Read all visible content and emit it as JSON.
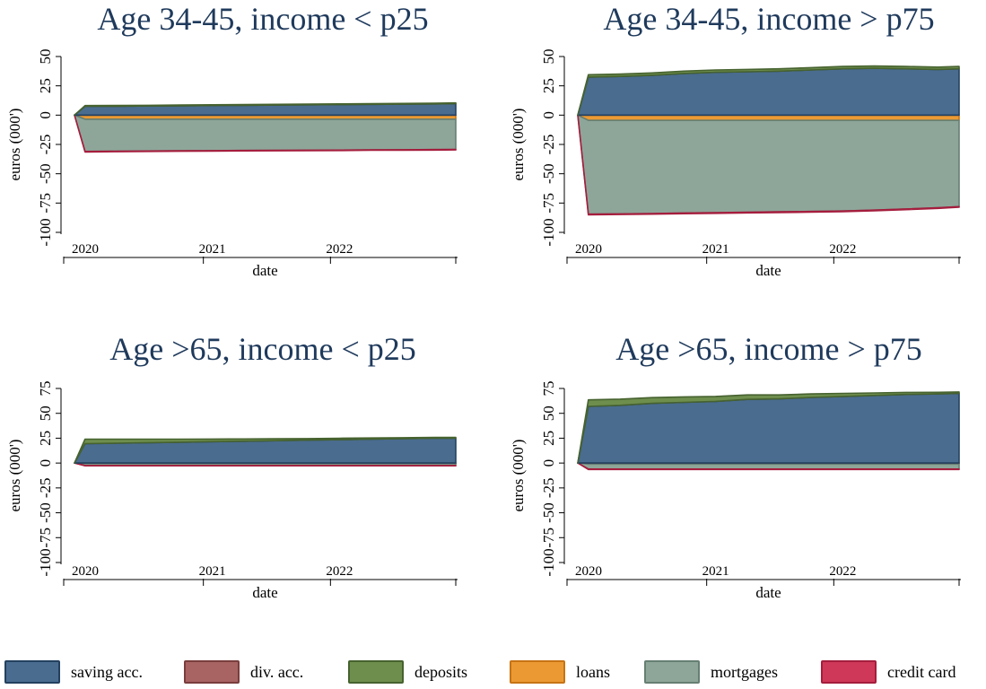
{
  "figure": {
    "legend": [
      {
        "key": "saving",
        "label": "saving acc.",
        "fill": "#4a6c8f",
        "stroke": "#23415f"
      },
      {
        "key": "div",
        "label": "div. acc.",
        "fill": "#a86363",
        "stroke": "#7a3d3d"
      },
      {
        "key": "deposits",
        "label": "deposits",
        "fill": "#6e8e4e",
        "stroke": "#46622f"
      },
      {
        "key": "loans",
        "label": "loans",
        "fill": "#eb9a33",
        "stroke": "#c77314"
      },
      {
        "key": "mortgages",
        "label": "mortgages",
        "fill": "#8ea69a",
        "stroke": "#667f73"
      },
      {
        "key": "credit",
        "label": "credit card",
        "fill": "#cf3858",
        "stroke": "#a51d3d"
      }
    ]
  },
  "chart_data": [
    {
      "type": "area",
      "stacked": true,
      "title": "Age 34-45, income < p25",
      "xlabel": "date",
      "ylabel": "euros (000')",
      "ylim": [
        -100,
        50
      ],
      "yticks": [
        -100,
        -75,
        -50,
        -25,
        0,
        25,
        50
      ],
      "xticks": [
        "2020",
        "2021",
        "2022"
      ],
      "x": [
        "2019-12",
        "2020-01",
        "2020-04",
        "2020-07",
        "2020-10",
        "2021-01",
        "2021-04",
        "2021-07",
        "2021-10",
        "2022-01",
        "2022-04",
        "2022-07",
        "2022-10",
        "2022-12"
      ],
      "series": [
        {
          "name": "saving acc.",
          "values": [
            0,
            7.5,
            7.6,
            7.8,
            8.0,
            8.2,
            8.4,
            8.6,
            8.8,
            9.0,
            9.2,
            9.4,
            9.6,
            9.8
          ]
        },
        {
          "name": "div. acc.",
          "values": [
            0,
            0,
            0,
            0,
            0,
            0,
            0,
            0,
            0,
            0,
            0,
            0,
            0,
            0
          ]
        },
        {
          "name": "deposits",
          "values": [
            0,
            0.6,
            0.6,
            0.6,
            0.6,
            0.6,
            0.6,
            0.6,
            0.6,
            0.6,
            0.6,
            0.6,
            0.6,
            0.6
          ]
        },
        {
          "name": "loans",
          "values": [
            0,
            -3.5,
            -3.5,
            -3.5,
            -3.5,
            -3.5,
            -3.5,
            -3.5,
            -3.5,
            -3.5,
            -3.5,
            -3.5,
            -3.5,
            -3.5
          ]
        },
        {
          "name": "mortgages",
          "values": [
            0,
            -27.5,
            -27.3,
            -27.1,
            -26.9,
            -26.8,
            -26.6,
            -26.5,
            -26.4,
            -26.3,
            -26.1,
            -26.0,
            -25.9,
            -25.8
          ]
        },
        {
          "name": "credit card",
          "values": [
            0,
            -0.4,
            -0.4,
            -0.4,
            -0.4,
            -0.4,
            -0.4,
            -0.4,
            -0.4,
            -0.4,
            -0.4,
            -0.4,
            -0.4,
            -0.4
          ]
        }
      ]
    },
    {
      "type": "area",
      "stacked": true,
      "title": "Age 34-45, income > p75",
      "xlabel": "date",
      "ylabel": "euros (000')",
      "ylim": [
        -100,
        50
      ],
      "yticks": [
        -100,
        -75,
        -50,
        -25,
        0,
        25,
        50
      ],
      "xticks": [
        "2020",
        "2021",
        "2022"
      ],
      "x": [
        "2019-12",
        "2020-01",
        "2020-04",
        "2020-07",
        "2020-10",
        "2021-01",
        "2021-04",
        "2021-07",
        "2021-10",
        "2022-01",
        "2022-04",
        "2022-07",
        "2022-10",
        "2022-12"
      ],
      "series": [
        {
          "name": "saving acc.",
          "values": [
            0,
            32.5,
            33.0,
            34.0,
            35.5,
            36.5,
            37.0,
            37.5,
            38.5,
            39.5,
            40.0,
            39.5,
            39.0,
            39.5
          ]
        },
        {
          "name": "div. acc.",
          "values": [
            0,
            0,
            0,
            0,
            0,
            0,
            0,
            0,
            0,
            0,
            0,
            0,
            0,
            0
          ]
        },
        {
          "name": "deposits",
          "values": [
            0,
            2.0,
            2.0,
            2.0,
            2.0,
            2.0,
            2.0,
            2.0,
            2.0,
            2.0,
            2.0,
            2.0,
            2.0,
            2.0
          ]
        },
        {
          "name": "loans",
          "values": [
            0,
            -4.5,
            -4.5,
            -4.5,
            -4.5,
            -4.5,
            -4.5,
            -4.5,
            -4.5,
            -4.5,
            -4.5,
            -4.5,
            -4.5,
            -4.5
          ]
        },
        {
          "name": "mortgages",
          "values": [
            0,
            -80.0,
            -79.7,
            -79.4,
            -79.0,
            -78.7,
            -78.3,
            -78.0,
            -77.7,
            -77.3,
            -76.5,
            -75.5,
            -74.5,
            -73.5
          ]
        },
        {
          "name": "credit card",
          "values": [
            0,
            -0.6,
            -0.6,
            -0.6,
            -0.6,
            -0.6,
            -0.6,
            -0.6,
            -0.6,
            -0.6,
            -0.6,
            -0.6,
            -0.6,
            -0.6
          ]
        }
      ]
    },
    {
      "type": "area",
      "stacked": true,
      "title": "Age >65, income < p25",
      "xlabel": "date",
      "ylabel": "euros (000')",
      "ylim": [
        -100,
        75
      ],
      "yticks": [
        -100,
        -75,
        -50,
        -25,
        0,
        25,
        50,
        75
      ],
      "xticks": [
        "2020",
        "2021",
        "2022"
      ],
      "x": [
        "2019-12",
        "2020-01",
        "2020-04",
        "2020-07",
        "2020-10",
        "2021-01",
        "2021-04",
        "2021-07",
        "2021-10",
        "2022-01",
        "2022-04",
        "2022-07",
        "2022-10",
        "2022-12"
      ],
      "series": [
        {
          "name": "saving acc.",
          "values": [
            0,
            19.5,
            20.0,
            20.5,
            21.0,
            21.5,
            22.0,
            22.5,
            23.0,
            23.5,
            24.0,
            24.5,
            25.0,
            25.0
          ]
        },
        {
          "name": "div. acc.",
          "values": [
            0,
            0,
            0,
            0,
            0,
            0,
            0,
            0,
            0,
            0,
            0,
            0,
            0,
            0
          ]
        },
        {
          "name": "deposits",
          "values": [
            0,
            4.5,
            4.0,
            3.5,
            3.0,
            2.6,
            2.2,
            1.9,
            1.6,
            1.4,
            1.2,
            1.0,
            0.8,
            0.8
          ]
        },
        {
          "name": "loans",
          "values": [
            0,
            -0.5,
            -0.5,
            -0.5,
            -0.5,
            -0.5,
            -0.5,
            -0.5,
            -0.5,
            -0.5,
            -0.5,
            -0.5,
            -0.5,
            -0.5
          ]
        },
        {
          "name": "mortgages",
          "values": [
            0,
            -2.0,
            -2.0,
            -2.0,
            -2.0,
            -2.0,
            -2.0,
            -2.0,
            -2.0,
            -2.0,
            -2.0,
            -2.0,
            -2.0,
            -2.0
          ]
        },
        {
          "name": "credit card",
          "values": [
            0,
            -0.3,
            -0.3,
            -0.3,
            -0.3,
            -0.3,
            -0.3,
            -0.3,
            -0.3,
            -0.3,
            -0.3,
            -0.3,
            -0.3,
            -0.3
          ]
        }
      ]
    },
    {
      "type": "area",
      "stacked": true,
      "title": "Age >65, income > p75",
      "xlabel": "date",
      "ylabel": "euros (000')",
      "ylim": [
        -100,
        75
      ],
      "yticks": [
        -100,
        -75,
        -50,
        -25,
        0,
        25,
        50,
        75
      ],
      "xticks": [
        "2020",
        "2021",
        "2022"
      ],
      "x": [
        "2019-12",
        "2020-01",
        "2020-04",
        "2020-07",
        "2020-10",
        "2021-01",
        "2021-04",
        "2021-07",
        "2021-10",
        "2022-01",
        "2022-04",
        "2022-07",
        "2022-10",
        "2022-12"
      ],
      "series": [
        {
          "name": "saving acc.",
          "values": [
            0,
            57.0,
            58.0,
            60.0,
            61.0,
            62.0,
            64.0,
            64.5,
            66.0,
            67.0,
            68.0,
            69.0,
            69.5,
            70.0
          ]
        },
        {
          "name": "div. acc.",
          "values": [
            0,
            0,
            0,
            0,
            0,
            0,
            0,
            0,
            0,
            0,
            0,
            0,
            0,
            0
          ]
        },
        {
          "name": "deposits",
          "values": [
            0,
            6.5,
            6.3,
            5.8,
            5.5,
            5.0,
            4.5,
            4.0,
            3.5,
            3.0,
            2.5,
            2.0,
            1.6,
            1.5
          ]
        },
        {
          "name": "loans",
          "values": [
            0,
            -1.0,
            -1.0,
            -1.0,
            -1.0,
            -1.0,
            -1.0,
            -1.0,
            -1.0,
            -1.0,
            -1.0,
            -1.0,
            -1.0,
            -1.0
          ]
        },
        {
          "name": "mortgages",
          "values": [
            0,
            -5.0,
            -5.0,
            -5.0,
            -5.0,
            -5.0,
            -5.0,
            -5.0,
            -5.0,
            -5.0,
            -5.0,
            -5.0,
            -5.0,
            -5.0
          ]
        },
        {
          "name": "credit card",
          "values": [
            0,
            -0.5,
            -0.5,
            -0.5,
            -0.5,
            -0.5,
            -0.5,
            -0.5,
            -0.5,
            -0.5,
            -0.5,
            -0.5,
            -0.5,
            -0.5
          ]
        }
      ]
    }
  ]
}
